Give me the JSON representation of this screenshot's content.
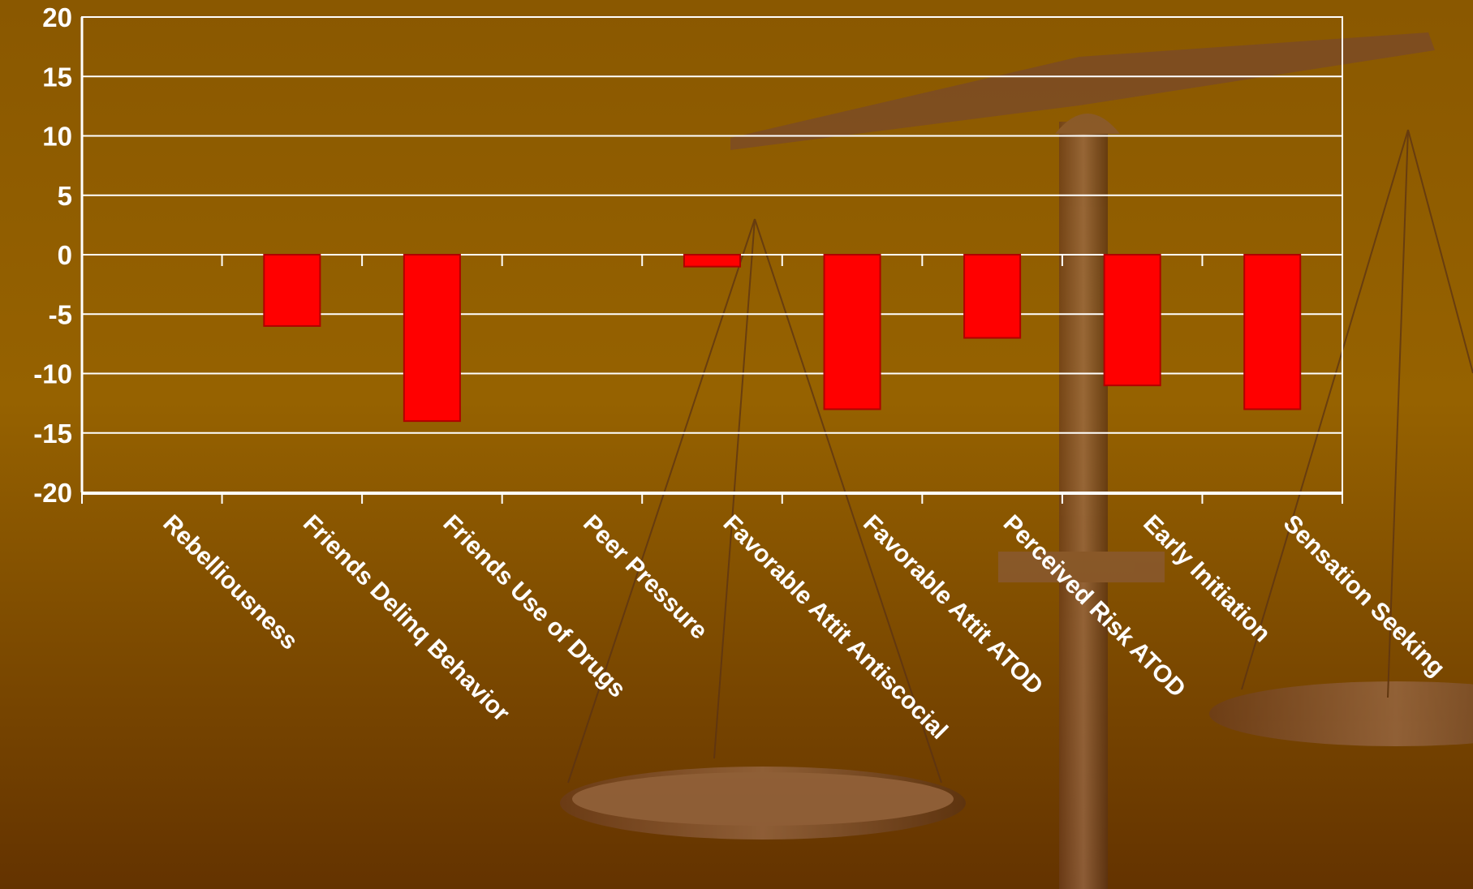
{
  "chart_data": {
    "type": "bar",
    "categories": [
      "Rebelliousness",
      "Friends Delinq Behavior",
      "Friends Use of Drugs",
      "Peer Pressure",
      "Favorable Attit Antiscocial",
      "Favorable Attit ATOD",
      "Perceived Risk ATOD",
      "Early Initiation",
      "Sensation Seeking"
    ],
    "values": [
      0,
      -6,
      -14,
      0,
      -1,
      -13,
      -7,
      -11,
      -13
    ],
    "color": "#ff0000",
    "ylim": [
      -20,
      20
    ],
    "yticks": [
      -20,
      -15,
      -10,
      -5,
      0,
      5,
      10,
      15,
      20
    ],
    "grid": true
  }
}
